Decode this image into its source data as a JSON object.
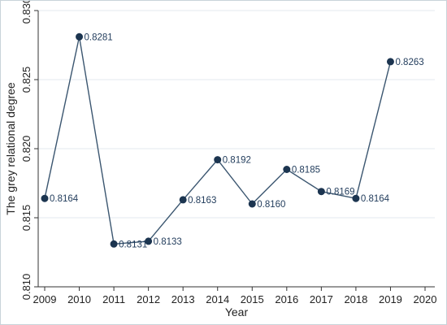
{
  "chart_data": {
    "type": "line",
    "xlabel": "Year",
    "ylabel": "The grey relational degree",
    "x": [
      2009,
      2010,
      2011,
      2012,
      2013,
      2014,
      2015,
      2016,
      2017,
      2018,
      2019
    ],
    "values": [
      0.8164,
      0.8281,
      0.8131,
      0.8133,
      0.8163,
      0.8192,
      0.816,
      0.8185,
      0.8169,
      0.8164,
      0.8263
    ],
    "data_labels": [
      "0.8164",
      "0.8281",
      "0.8131",
      "0.8133",
      "0.8163",
      "0.8192",
      "0.8160",
      "0.8185",
      "0.8169",
      "0.8164",
      "0.8263"
    ],
    "xticks": [
      "2009",
      "2010",
      "2011",
      "2012",
      "2013",
      "2014",
      "2015",
      "2016",
      "2017",
      "2018",
      "2019",
      "2020"
    ],
    "xtick_values": [
      2009,
      2010,
      2011,
      2012,
      2013,
      2014,
      2015,
      2016,
      2017,
      2018,
      2019,
      2020
    ],
    "yticks": [
      "0.810",
      "0.815",
      "0.820",
      "0.825",
      "0.830"
    ],
    "ytick_values": [
      0.81,
      0.815,
      0.82,
      0.825,
      0.83
    ],
    "xlim": [
      2009,
      2020
    ],
    "ylim": [
      0.81,
      0.83
    ],
    "grid": true,
    "line_color": "#3b5670",
    "marker_color": "#1c3550",
    "grid_color": "#e3eaef"
  }
}
